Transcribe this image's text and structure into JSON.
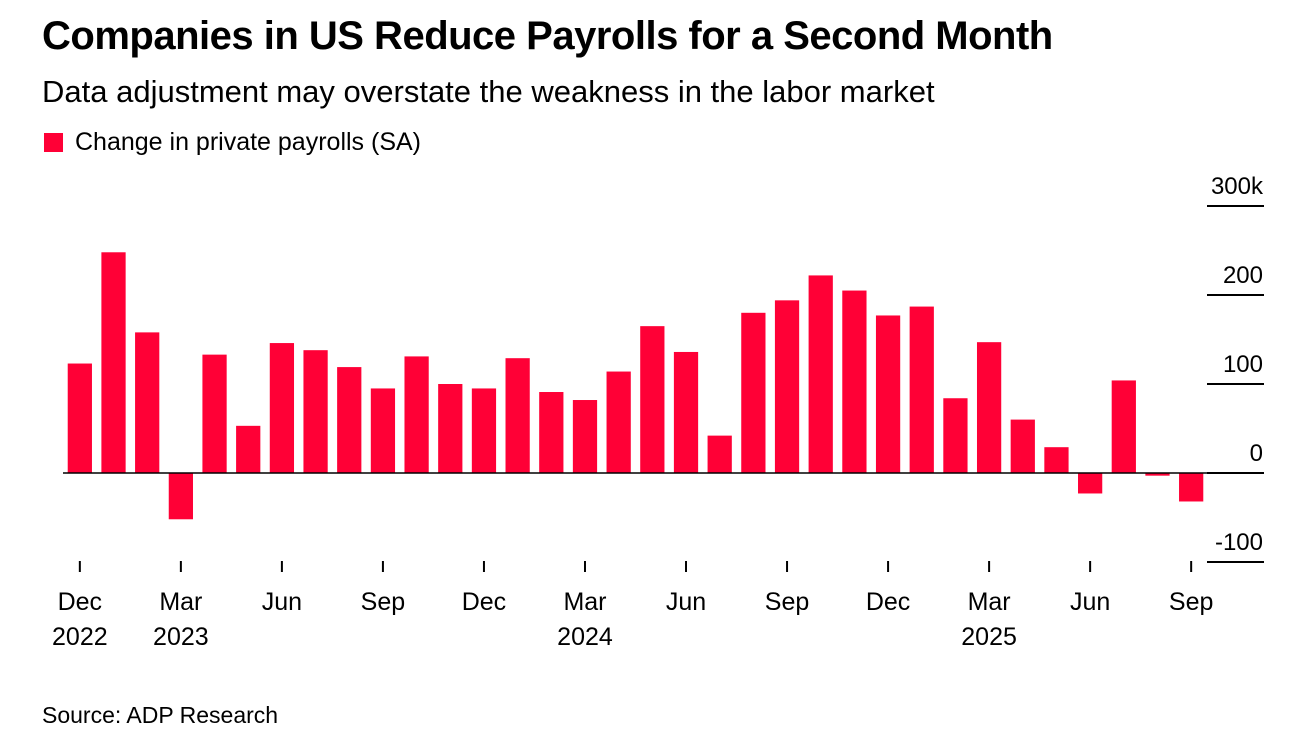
{
  "title": "Companies in US Reduce Payrolls for a Second Month",
  "subtitle": "Data adjustment may overstate the weakness in the labor market",
  "legend": {
    "label": "Change in private payrolls (SA)",
    "color": "#FF0036"
  },
  "source": "Source: ADP Research",
  "chart_data": {
    "type": "bar",
    "series": [
      {
        "name": "Change in private payrolls (SA)",
        "color": "#FF0036",
        "values": [
          123,
          248,
          158,
          -52,
          133,
          53,
          146,
          138,
          119,
          95,
          131,
          100,
          95,
          129,
          91,
          82,
          114,
          165,
          136,
          42,
          180,
          194,
          222,
          205,
          177,
          187,
          84,
          147,
          60,
          29,
          -23,
          104,
          -3,
          -32
        ]
      }
    ],
    "categories": [
      "Dec 2022",
      "Jan 2023",
      "Feb 2023",
      "Mar 2023",
      "Apr 2023",
      "May 2023",
      "Jun 2023",
      "Jul 2023",
      "Aug 2023",
      "Sep 2023",
      "Oct 2023",
      "Nov 2023",
      "Dec 2023",
      "Jan 2024",
      "Feb 2024",
      "Mar 2024",
      "Apr 2024",
      "May 2024",
      "Jun 2024",
      "Jul 2024",
      "Aug 2024",
      "Sep 2024",
      "Oct 2024",
      "Nov 2024",
      "Dec 2024",
      "Jan 2025",
      "Feb 2025",
      "Mar 2025",
      "Apr 2025",
      "May 2025",
      "Jun 2025",
      "Jul 2025",
      "Aug 2025",
      "Sep 2025"
    ],
    "x_tick_labels": [
      {
        "index": 0,
        "month": "Dec",
        "year": "2022"
      },
      {
        "index": 3,
        "month": "Mar",
        "year": "2023"
      },
      {
        "index": 6,
        "month": "Jun",
        "year": ""
      },
      {
        "index": 9,
        "month": "Sep",
        "year": ""
      },
      {
        "index": 12,
        "month": "Dec",
        "year": ""
      },
      {
        "index": 15,
        "month": "Mar",
        "year": "2024"
      },
      {
        "index": 18,
        "month": "Jun",
        "year": ""
      },
      {
        "index": 21,
        "month": "Sep",
        "year": ""
      },
      {
        "index": 24,
        "month": "Dec",
        "year": ""
      },
      {
        "index": 27,
        "month": "Mar",
        "year": "2025"
      },
      {
        "index": 30,
        "month": "Jun",
        "year": ""
      },
      {
        "index": 33,
        "month": "Sep",
        "year": ""
      }
    ],
    "y_ticks": [
      {
        "value": 300,
        "label": "300k"
      },
      {
        "value": 200,
        "label": "200"
      },
      {
        "value": 100,
        "label": "100"
      },
      {
        "value": 0,
        "label": "0"
      },
      {
        "value": -100,
        "label": "-100"
      }
    ],
    "ylim": [
      -100,
      300
    ],
    "yaxis_position": "right",
    "xlabel": "",
    "ylabel": ""
  }
}
